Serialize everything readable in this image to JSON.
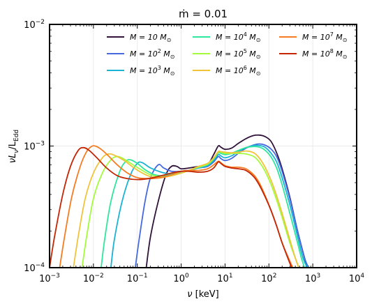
{
  "chart_data": {
    "type": "line",
    "title_main": "ṁ = 0.01",
    "xlabel_main": "ν",
    "xlabel_unit": "[keV]",
    "ylabel_main": "νL",
    "ylabel_sub_nu": "ν",
    "ylabel_slash": "/L",
    "ylabel_sub_edd": "Edd",
    "x_scale": "log",
    "y_scale": "log",
    "xlim": [
      0.001,
      10000
    ],
    "ylim": [
      0.0001,
      0.01
    ],
    "grid": true,
    "legend_position": "top",
    "x_ticks": [
      {
        "value": 0.001,
        "base": "10",
        "exp": "−3"
      },
      {
        "value": 0.01,
        "base": "10",
        "exp": "−2"
      },
      {
        "value": 0.1,
        "base": "10",
        "exp": "−1"
      },
      {
        "value": 1,
        "base": "10",
        "exp": "0"
      },
      {
        "value": 10,
        "base": "10",
        "exp": "1"
      },
      {
        "value": 100,
        "base": "10",
        "exp": "2"
      },
      {
        "value": 1000,
        "base": "10",
        "exp": "3"
      },
      {
        "value": 10000,
        "base": "10",
        "exp": "4"
      }
    ],
    "y_ticks": [
      {
        "value": 0.0001,
        "base": "10",
        "exp": "−4"
      },
      {
        "value": 0.001,
        "base": "10",
        "exp": "−3"
      },
      {
        "value": 0.01,
        "base": "10",
        "exp": "−2"
      }
    ],
    "series": [
      {
        "name_prefix": "M = 10",
        "name_exp": "",
        "name_unit": "M",
        "name_sub": "⊙",
        "color": "#30123b",
        "points": [
          [
            0.16,
            0.0001
          ],
          [
            0.2,
            0.00018
          ],
          [
            0.3,
            0.00035
          ],
          [
            0.45,
            0.00058
          ],
          [
            0.6,
            0.00068
          ],
          [
            0.8,
            0.00068
          ],
          [
            1.0,
            0.00065
          ],
          [
            1.5,
            0.00066
          ],
          [
            2.5,
            0.00068
          ],
          [
            4,
            0.0007
          ],
          [
            5.5,
            0.00085
          ],
          [
            7,
            0.001
          ],
          [
            8,
            0.00098
          ],
          [
            10,
            0.00094
          ],
          [
            14,
            0.00096
          ],
          [
            20,
            0.00105
          ],
          [
            30,
            0.00115
          ],
          [
            45,
            0.00122
          ],
          [
            60,
            0.00123
          ],
          [
            80,
            0.0012
          ],
          [
            110,
            0.0011
          ],
          [
            150,
            0.00088
          ],
          [
            200,
            0.00065
          ],
          [
            300,
            0.00038
          ],
          [
            450,
            0.0002
          ],
          [
            650,
            0.00012
          ],
          [
            750,
            0.0001
          ]
        ]
      },
      {
        "name_prefix": "M = 10",
        "name_exp": "2",
        "name_unit": "M",
        "name_sub": "⊙",
        "color": "#4669e0",
        "points": [
          [
            0.09,
            0.0001
          ],
          [
            0.11,
            0.00017
          ],
          [
            0.15,
            0.00035
          ],
          [
            0.2,
            0.00055
          ],
          [
            0.3,
            0.0007
          ],
          [
            0.4,
            0.00066
          ],
          [
            0.6,
            0.00062
          ],
          [
            1.0,
            0.00062
          ],
          [
            1.5,
            0.00063
          ],
          [
            2.5,
            0.00066
          ],
          [
            4,
            0.00068
          ],
          [
            5.5,
            0.00074
          ],
          [
            7,
            0.00082
          ],
          [
            8,
            0.00079
          ],
          [
            10,
            0.00076
          ],
          [
            14,
            0.00079
          ],
          [
            20,
            0.00087
          ],
          [
            30,
            0.00096
          ],
          [
            45,
            0.00102
          ],
          [
            60,
            0.00104
          ],
          [
            80,
            0.00102
          ],
          [
            110,
            0.00095
          ],
          [
            150,
            0.00082
          ],
          [
            200,
            0.00062
          ],
          [
            300,
            0.00037
          ],
          [
            450,
            0.0002
          ],
          [
            650,
            0.00012
          ],
          [
            800,
            0.0001
          ]
        ]
      },
      {
        "name_prefix": "M = 10",
        "name_exp": "3",
        "name_unit": "M",
        "name_sub": "⊙",
        "color": "#1ab3d5",
        "points": [
          [
            0.025,
            0.0001
          ],
          [
            0.03,
            0.00017
          ],
          [
            0.045,
            0.00035
          ],
          [
            0.07,
            0.00058
          ],
          [
            0.1,
            0.00072
          ],
          [
            0.13,
            0.00073
          ],
          [
            0.2,
            0.00066
          ],
          [
            0.35,
            0.00061
          ],
          [
            0.6,
            0.00059
          ],
          [
            1.0,
            0.00061
          ],
          [
            1.5,
            0.00063
          ],
          [
            2.5,
            0.00066
          ],
          [
            4,
            0.00069
          ],
          [
            5.5,
            0.00076
          ],
          [
            7,
            0.00085
          ],
          [
            8,
            0.00083
          ],
          [
            10,
            0.0008
          ],
          [
            14,
            0.00083
          ],
          [
            20,
            0.0009
          ],
          [
            30,
            0.00097
          ],
          [
            45,
            0.00101
          ],
          [
            60,
            0.00101
          ],
          [
            80,
            0.00098
          ],
          [
            110,
            0.00088
          ],
          [
            150,
            0.00074
          ],
          [
            200,
            0.00055
          ],
          [
            300,
            0.00033
          ],
          [
            450,
            0.00018
          ],
          [
            600,
            0.00012
          ],
          [
            750,
            0.0001
          ]
        ]
      },
      {
        "name_prefix": "M = 10",
        "name_exp": "4",
        "name_unit": "M",
        "name_sub": "⊙",
        "color": "#30e69c",
        "points": [
          [
            0.015,
            0.0001
          ],
          [
            0.018,
            0.00017
          ],
          [
            0.025,
            0.00035
          ],
          [
            0.04,
            0.00062
          ],
          [
            0.055,
            0.00075
          ],
          [
            0.07,
            0.00077
          ],
          [
            0.1,
            0.00072
          ],
          [
            0.15,
            0.00064
          ],
          [
            0.25,
            0.00058
          ],
          [
            0.4,
            0.00057
          ],
          [
            0.6,
            0.00059
          ],
          [
            1.0,
            0.0006
          ],
          [
            1.5,
            0.00063
          ],
          [
            2.5,
            0.00067
          ],
          [
            4,
            0.0007
          ],
          [
            5.5,
            0.00078
          ],
          [
            7,
            0.00088
          ],
          [
            8,
            0.00087
          ],
          [
            10,
            0.00085
          ],
          [
            14,
            0.00087
          ],
          [
            20,
            0.00092
          ],
          [
            30,
            0.00097
          ],
          [
            45,
            0.00099
          ],
          [
            60,
            0.00098
          ],
          [
            80,
            0.00093
          ],
          [
            110,
            0.00082
          ],
          [
            150,
            0.00066
          ],
          [
            200,
            0.00048
          ],
          [
            300,
            0.00028
          ],
          [
            450,
            0.00016
          ],
          [
            550,
            0.00012
          ],
          [
            650,
            0.0001
          ]
        ]
      },
      {
        "name_prefix": "M = 10",
        "name_exp": "5",
        "name_unit": "M",
        "name_sub": "⊙",
        "color": "#a4fb3d",
        "points": [
          [
            0.0055,
            0.0001
          ],
          [
            0.007,
            0.00018
          ],
          [
            0.01,
            0.00037
          ],
          [
            0.016,
            0.0006
          ],
          [
            0.025,
            0.00077
          ],
          [
            0.035,
            0.00082
          ],
          [
            0.05,
            0.00078
          ],
          [
            0.08,
            0.0007
          ],
          [
            0.13,
            0.00063
          ],
          [
            0.2,
            0.00058
          ],
          [
            0.35,
            0.00056
          ],
          [
            0.6,
            0.00057
          ],
          [
            1.0,
            0.0006
          ],
          [
            1.5,
            0.00063
          ],
          [
            2.5,
            0.00067
          ],
          [
            4,
            0.00071
          ],
          [
            5.5,
            0.00079
          ],
          [
            7,
            0.00089
          ],
          [
            8,
            0.00089
          ],
          [
            10,
            0.00087
          ],
          [
            14,
            0.00087
          ],
          [
            20,
            0.00087
          ],
          [
            30,
            0.00086
          ],
          [
            45,
            0.00082
          ],
          [
            60,
            0.00074
          ],
          [
            80,
            0.00063
          ],
          [
            110,
            0.00049
          ],
          [
            150,
            0.00036
          ],
          [
            200,
            0.00026
          ],
          [
            300,
            0.00016
          ],
          [
            400,
            0.00012
          ],
          [
            480,
            0.0001
          ]
        ]
      },
      {
        "name_prefix": "M = 10",
        "name_exp": "6",
        "name_unit": "M",
        "name_sub": "⊙",
        "color": "#f0c33a",
        "points": [
          [
            0.0035,
            0.0001
          ],
          [
            0.0045,
            0.00018
          ],
          [
            0.0065,
            0.00037
          ],
          [
            0.01,
            0.0006
          ],
          [
            0.016,
            0.0008
          ],
          [
            0.022,
            0.00086
          ],
          [
            0.03,
            0.00084
          ],
          [
            0.05,
            0.00076
          ],
          [
            0.08,
            0.00067
          ],
          [
            0.13,
            0.0006
          ],
          [
            0.2,
            0.00056
          ],
          [
            0.35,
            0.00055
          ],
          [
            0.6,
            0.00057
          ],
          [
            1.0,
            0.0006
          ],
          [
            1.5,
            0.00063
          ],
          [
            2.5,
            0.00068
          ],
          [
            4,
            0.00072
          ],
          [
            5.5,
            0.0008
          ],
          [
            7,
            0.0009
          ],
          [
            8,
            0.0009
          ],
          [
            10,
            0.00089
          ],
          [
            14,
            0.00088
          ],
          [
            20,
            0.00089
          ],
          [
            30,
            0.00091
          ],
          [
            45,
            0.00088
          ],
          [
            60,
            0.0008
          ],
          [
            80,
            0.00068
          ],
          [
            110,
            0.00053
          ],
          [
            150,
            0.00039
          ],
          [
            200,
            0.00028
          ],
          [
            300,
            0.00017
          ],
          [
            400,
            0.00012
          ],
          [
            480,
            0.0001
          ]
        ]
      },
      {
        "name_prefix": "M = 10",
        "name_exp": "7",
        "name_unit": "M",
        "name_sub": "⊙",
        "color": "#f57c22",
        "points": [
          [
            0.0017,
            0.0001
          ],
          [
            0.0022,
            0.00018
          ],
          [
            0.0032,
            0.00038
          ],
          [
            0.005,
            0.00068
          ],
          [
            0.007,
            0.0009
          ],
          [
            0.009,
            0.00099
          ],
          [
            0.011,
            0.001
          ],
          [
            0.015,
            0.00094
          ],
          [
            0.022,
            0.00083
          ],
          [
            0.035,
            0.0007
          ],
          [
            0.06,
            0.0006
          ],
          [
            0.1,
            0.00055
          ],
          [
            0.18,
            0.00054
          ],
          [
            0.35,
            0.00055
          ],
          [
            0.6,
            0.00058
          ],
          [
            1.0,
            0.00062
          ],
          [
            1.5,
            0.00063
          ],
          [
            2.5,
            0.00063
          ],
          [
            4,
            0.00065
          ],
          [
            5.5,
            0.0007
          ],
          [
            7,
            0.00075
          ],
          [
            8,
            0.00073
          ],
          [
            10,
            0.00069
          ],
          [
            14,
            0.00067
          ],
          [
            20,
            0.00067
          ],
          [
            30,
            0.00065
          ],
          [
            45,
            0.00058
          ],
          [
            60,
            0.0005
          ],
          [
            80,
            0.0004
          ],
          [
            110,
            0.0003
          ],
          [
            150,
            0.00022
          ],
          [
            200,
            0.00016
          ],
          [
            280,
            0.00012
          ],
          [
            350,
            0.0001
          ]
        ]
      },
      {
        "name_prefix": "M = 10",
        "name_exp": "8",
        "name_unit": "M",
        "name_sub": "⊙",
        "color": "#c42503",
        "points": [
          [
            0.001,
            0.0001
          ],
          [
            0.0013,
            0.00018
          ],
          [
            0.002,
            0.0004
          ],
          [
            0.003,
            0.00068
          ],
          [
            0.0045,
            0.00092
          ],
          [
            0.006,
            0.00097
          ],
          [
            0.008,
            0.00092
          ],
          [
            0.012,
            0.0008
          ],
          [
            0.02,
            0.00066
          ],
          [
            0.035,
            0.00057
          ],
          [
            0.06,
            0.00054
          ],
          [
            0.1,
            0.00053
          ],
          [
            0.18,
            0.00054
          ],
          [
            0.35,
            0.00057
          ],
          [
            0.6,
            0.0006
          ],
          [
            1.0,
            0.00062
          ],
          [
            1.5,
            0.00062
          ],
          [
            2.5,
            0.00061
          ],
          [
            4,
            0.00062
          ],
          [
            5.5,
            0.00066
          ],
          [
            7,
            0.00074
          ],
          [
            8,
            0.00072
          ],
          [
            10,
            0.00068
          ],
          [
            14,
            0.00066
          ],
          [
            20,
            0.00065
          ],
          [
            30,
            0.00063
          ],
          [
            45,
            0.00056
          ],
          [
            60,
            0.00048
          ],
          [
            80,
            0.00039
          ],
          [
            110,
            0.0003
          ],
          [
            150,
            0.00022
          ],
          [
            200,
            0.00016
          ],
          [
            270,
            0.00012
          ],
          [
            330,
            0.0001
          ]
        ]
      }
    ]
  }
}
